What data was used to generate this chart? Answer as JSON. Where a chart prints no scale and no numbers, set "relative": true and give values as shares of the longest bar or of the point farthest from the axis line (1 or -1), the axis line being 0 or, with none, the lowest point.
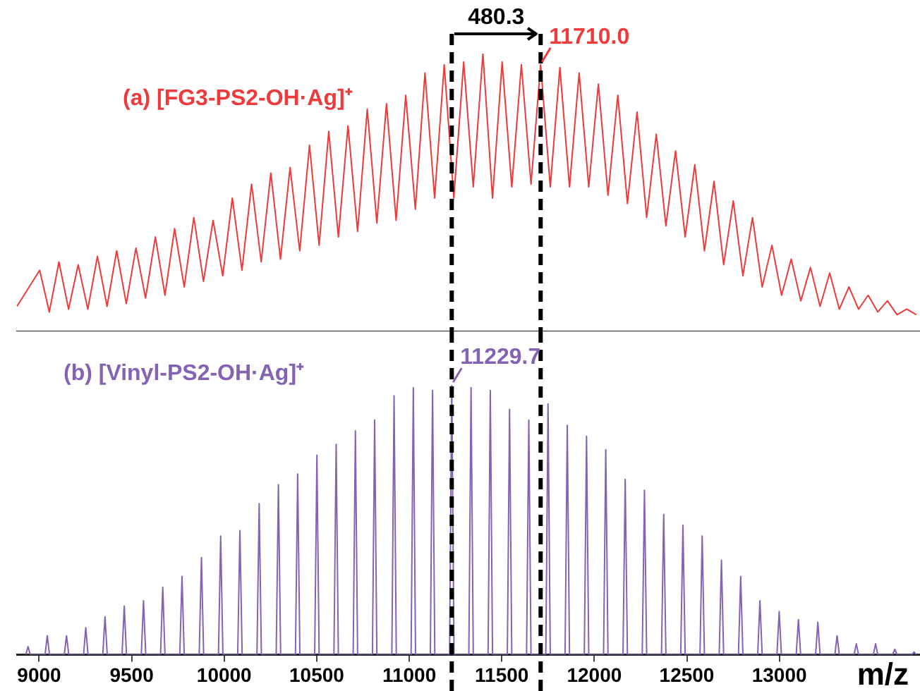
{
  "chart_data": [
    {
      "type": "line",
      "relative": true,
      "xlim": [
        8880,
        13760
      ],
      "xticks": [
        9000,
        9500,
        10000,
        10500,
        11000,
        11500,
        12000,
        12500,
        13000
      ],
      "tick_labels": false,
      "grid": false,
      "marker": "none",
      "line_style": "solid",
      "series": [
        {
          "name": "(a) [FG3-PS2-OH·Ag]⁺",
          "color": "#ee3a3a",
          "x": [
            8880,
            9003,
            9055,
            9107,
            9159,
            9211,
            9263,
            9315,
            9367,
            9419,
            9471,
            9523,
            9575,
            9628,
            9680,
            9732,
            9784,
            9836,
            9888,
            9940,
            9992,
            10044,
            10096,
            10148,
            10200,
            10252,
            10304,
            10356,
            10408,
            10461,
            10513,
            10565,
            10617,
            10669,
            10721,
            10773,
            10825,
            10877,
            10929,
            10981,
            11033,
            11085,
            11137,
            11189,
            11241,
            11294,
            11346,
            11398,
            11450,
            11502,
            11554,
            11606,
            11658,
            11710,
            11762,
            11814,
            11866,
            11918,
            11970,
            12022,
            12074,
            12127,
            12179,
            12231,
            12283,
            12335,
            12387,
            12439,
            12491,
            12543,
            12595,
            12647,
            12699,
            12751,
            12803,
            12855,
            12907,
            12960,
            13012,
            13064,
            13116,
            13168,
            13220,
            13272,
            13324,
            13376,
            13428,
            13480,
            13532,
            13584,
            13636,
            13688,
            13740
          ],
          "values": [
            0.09,
            0.22,
            0.07,
            0.25,
            0.08,
            0.24,
            0.08,
            0.27,
            0.09,
            0.29,
            0.1,
            0.3,
            0.12,
            0.34,
            0.13,
            0.37,
            0.16,
            0.41,
            0.18,
            0.4,
            0.2,
            0.48,
            0.22,
            0.53,
            0.25,
            0.57,
            0.26,
            0.59,
            0.29,
            0.67,
            0.31,
            0.72,
            0.34,
            0.74,
            0.36,
            0.8,
            0.39,
            0.82,
            0.4,
            0.85,
            0.44,
            0.93,
            0.48,
            0.96,
            0.48,
            0.97,
            0.52,
            1.0,
            0.48,
            0.97,
            0.52,
            0.96,
            0.53,
            0.96,
            0.52,
            0.95,
            0.52,
            0.93,
            0.52,
            0.89,
            0.49,
            0.85,
            0.46,
            0.79,
            0.41,
            0.71,
            0.38,
            0.65,
            0.34,
            0.6,
            0.29,
            0.54,
            0.24,
            0.47,
            0.2,
            0.41,
            0.16,
            0.31,
            0.13,
            0.26,
            0.11,
            0.23,
            0.09,
            0.21,
            0.08,
            0.16,
            0.08,
            0.13,
            0.07,
            0.11,
            0.06,
            0.08,
            0.06
          ]
        }
      ],
      "ref_lines": [
        {
          "axis": "x",
          "value": 11229.7,
          "color": "#000000",
          "line_style": "dashed"
        },
        {
          "axis": "x",
          "value": 11710,
          "color": "#000000",
          "line_style": "dashed"
        }
      ],
      "annotations": [
        "480.3",
        {
          "text": "11710.0",
          "x": 11710,
          "y": 0.96
        }
      ]
    },
    {
      "type": "line",
      "relative": true,
      "xlim": [
        8880,
        13760
      ],
      "xticks": [
        9000,
        9500,
        10000,
        10500,
        11000,
        11500,
        12000,
        12500,
        13000
      ],
      "xlabel": "m/z",
      "grid": false,
      "marker": "none",
      "line_style": "solid",
      "series": [
        {
          "name": "(b) [Vinyl-PS2-OH·Ag]⁺",
          "color": "#8462b4",
          "x": [
            8928,
            8940,
            8952,
            9032,
            9044,
            9056,
            9136,
            9148,
            9160,
            9240,
            9252,
            9264,
            9344,
            9356,
            9368,
            9448,
            9460,
            9472,
            9552,
            9564,
            9576,
            9656,
            9668,
            9680,
            9760,
            9772,
            9784,
            9865,
            9877,
            9889,
            9969,
            9981,
            9993,
            10073,
            10085,
            10097,
            10177,
            10189,
            10201,
            10281,
            10293,
            10305,
            10385,
            10397,
            10409,
            10489,
            10501,
            10513,
            10593,
            10605,
            10617,
            10697,
            10709,
            10721,
            10801,
            10813,
            10825,
            10906,
            10918,
            10930,
            11010,
            11022,
            11034,
            11114,
            11126,
            11138,
            11218,
            11229.7,
            11242,
            11322,
            11334,
            11346,
            11426,
            11438,
            11450,
            11530,
            11542,
            11554,
            11634,
            11646,
            11658,
            11738,
            11750,
            11762,
            11842,
            11854,
            11866,
            11946,
            11958,
            11970,
            12050,
            12062,
            12074,
            12155,
            12167,
            12179,
            12259,
            12271,
            12283,
            12363,
            12375,
            12387,
            12467,
            12479,
            12491,
            12571,
            12583,
            12595,
            12675,
            12687,
            12699,
            12779,
            12791,
            12803,
            12883,
            12895,
            12907,
            12987,
            12999,
            13011,
            13091,
            13103,
            13115,
            13196,
            13208,
            13220,
            13300,
            13312,
            13324,
            13404,
            13416,
            13428,
            13508,
            13520,
            13532,
            13612,
            13624,
            13636,
            13716,
            13728,
            13740
          ],
          "values": [
            0,
            0.03,
            0,
            0,
            0.07,
            0,
            0,
            0.07,
            0,
            0,
            0.1,
            0,
            0,
            0.14,
            0,
            0,
            0.18,
            0,
            0,
            0.2,
            0,
            0,
            0.25,
            0,
            0,
            0.29,
            0,
            0,
            0.36,
            0,
            0,
            0.44,
            0,
            0,
            0.46,
            0,
            0,
            0.56,
            0,
            0,
            0.63,
            0,
            0,
            0.67,
            0,
            0,
            0.74,
            0,
            0,
            0.78,
            0,
            0,
            0.83,
            0,
            0,
            0.87,
            0,
            0,
            0.96,
            0,
            0,
            0.99,
            0,
            0,
            0.98,
            0,
            0,
            1.0,
            0,
            0,
            0.99,
            0,
            0,
            0.98,
            0,
            0,
            0.91,
            0,
            0,
            0.87,
            0,
            0,
            0.93,
            0,
            0,
            0.85,
            0,
            0,
            0.81,
            0,
            0,
            0.76,
            0,
            0,
            0.65,
            0,
            0,
            0.61,
            0,
            0,
            0.52,
            0,
            0,
            0.48,
            0,
            0,
            0.44,
            0,
            0,
            0.35,
            0,
            0,
            0.29,
            0,
            0,
            0.2,
            0,
            0,
            0.16,
            0,
            0,
            0.13,
            0,
            0,
            0.12,
            0,
            0,
            0.07,
            0,
            0,
            0.04,
            0,
            0,
            0.04,
            0,
            0,
            0.02,
            0,
            0,
            0.01,
            0
          ]
        }
      ],
      "ref_lines": [
        {
          "axis": "x",
          "value": 11229.7,
          "color": "#000000",
          "line_style": "dashed"
        },
        {
          "axis": "x",
          "value": 11710,
          "color": "#000000",
          "line_style": "dashed"
        }
      ],
      "annotations": [
        {
          "text": "11229.7",
          "x": 11229.7,
          "y": 1.0
        }
      ]
    }
  ]
}
